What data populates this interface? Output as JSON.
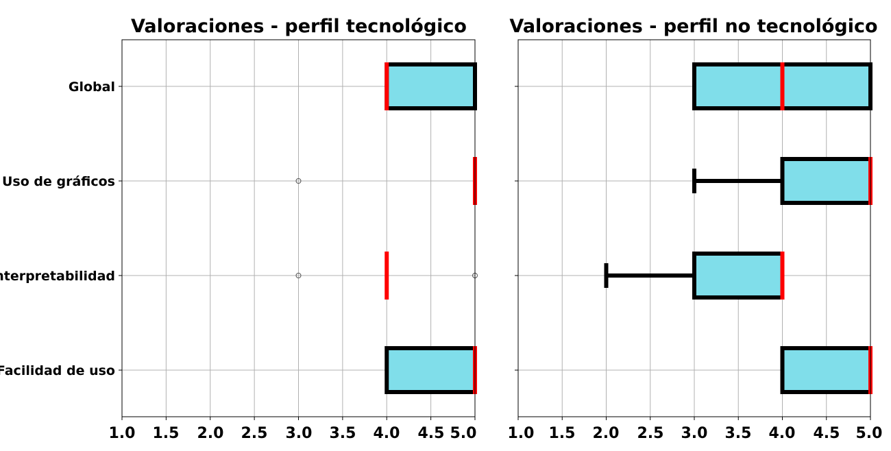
{
  "chart_data": [
    {
      "type": "boxplot",
      "orientation": "horizontal",
      "title": "Valoraciones - perfil tecnológico",
      "xlim": [
        1.0,
        5.0
      ],
      "xticks": [
        "1.0",
        "1.5",
        "2.0",
        "2.5",
        "3.0",
        "3.5",
        "4.0",
        "4.5",
        "5.0"
      ],
      "grid": true,
      "categories": [
        "Global",
        "Uso de gráficos",
        "Interpretabilidad",
        "Facilidad de uso"
      ],
      "boxes": [
        {
          "label": "Global",
          "whislo": 4.0,
          "q1": 4.0,
          "med": 4.0,
          "q3": 5.0,
          "whishi": 5.0,
          "fliers": []
        },
        {
          "label": "Uso de gráficos",
          "whislo": 5.0,
          "q1": 5.0,
          "med": 5.0,
          "q3": 5.0,
          "whishi": 5.0,
          "fliers": [
            3.0
          ]
        },
        {
          "label": "Interpretabilidad",
          "whislo": 4.0,
          "q1": 4.0,
          "med": 4.0,
          "q3": 4.0,
          "whishi": 4.0,
          "fliers": [
            3.0,
            5.0
          ]
        },
        {
          "label": "Facilidad de uso",
          "whislo": 4.0,
          "q1": 4.0,
          "med": 5.0,
          "q3": 5.0,
          "whishi": 5.0,
          "fliers": []
        }
      ]
    },
    {
      "type": "boxplot",
      "orientation": "horizontal",
      "title": "Valoraciones - perfil no tecnológico",
      "xlim": [
        1.0,
        5.0
      ],
      "xticks": [
        "1.0",
        "1.5",
        "2.0",
        "2.5",
        "3.0",
        "3.5",
        "4.0",
        "4.5",
        "5.0"
      ],
      "grid": true,
      "categories": [
        "Global",
        "Uso de gráficos",
        "Interpretabilidad",
        "Facilidad de uso"
      ],
      "boxes": [
        {
          "label": "Global",
          "whislo": 3.0,
          "q1": 3.0,
          "med": 4.0,
          "q3": 5.0,
          "whishi": 5.0,
          "fliers": []
        },
        {
          "label": "Uso de gráficos",
          "whislo": 3.0,
          "q1": 4.0,
          "med": 5.0,
          "q3": 5.0,
          "whishi": 5.0,
          "fliers": []
        },
        {
          "label": "Interpretabilidad",
          "whislo": 2.0,
          "q1": 3.0,
          "med": 4.0,
          "q3": 4.0,
          "whishi": 4.0,
          "fliers": []
        },
        {
          "label": "Facilidad de uso",
          "whislo": 4.0,
          "q1": 4.0,
          "med": 5.0,
          "q3": 5.0,
          "whishi": 5.0,
          "fliers": []
        }
      ]
    }
  ],
  "colors": {
    "box_fill": "#80deea",
    "box_edge": "#000000",
    "median": "#ff0000",
    "grid": "#b0b0b0",
    "flier_edge": "#555555"
  }
}
